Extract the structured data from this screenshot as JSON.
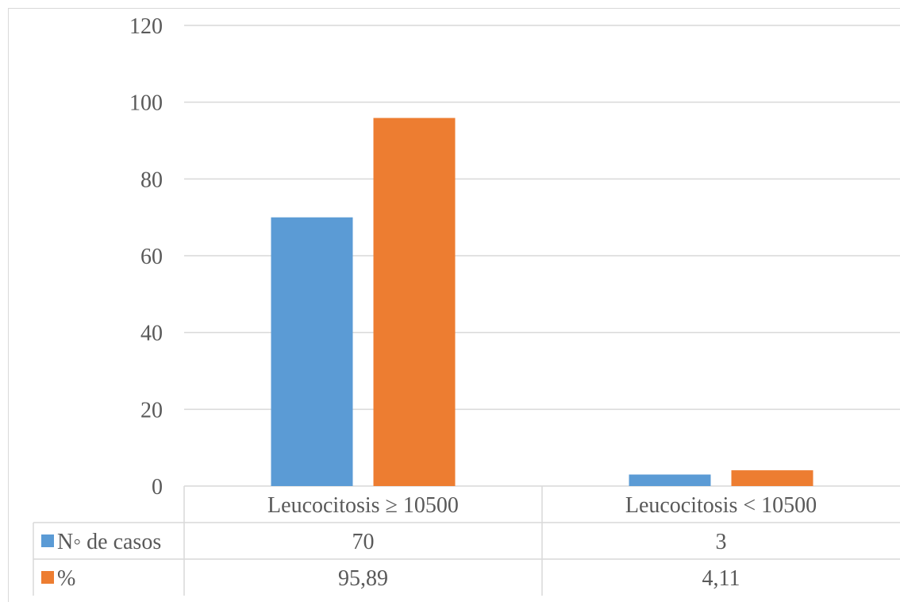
{
  "chart_data": {
    "type": "bar",
    "categories": [
      "Leucocitosis ≥ 10500",
      "Leucocitosis < 10500"
    ],
    "series": [
      {
        "name": "N◦ de casos",
        "values": [
          70,
          3
        ],
        "labels": [
          "70",
          "3"
        ],
        "color": "#5B9BD5"
      },
      {
        "name": "%",
        "values": [
          95.89,
          4.11
        ],
        "labels": [
          "95,89",
          "4,11"
        ],
        "color": "#ED7D31"
      }
    ],
    "ylim": [
      0,
      120
    ],
    "yticks": [
      0,
      20,
      40,
      60,
      80,
      100,
      120
    ],
    "grid": true,
    "legend": "data-table",
    "gridline_color": "#d9d9d9"
  }
}
